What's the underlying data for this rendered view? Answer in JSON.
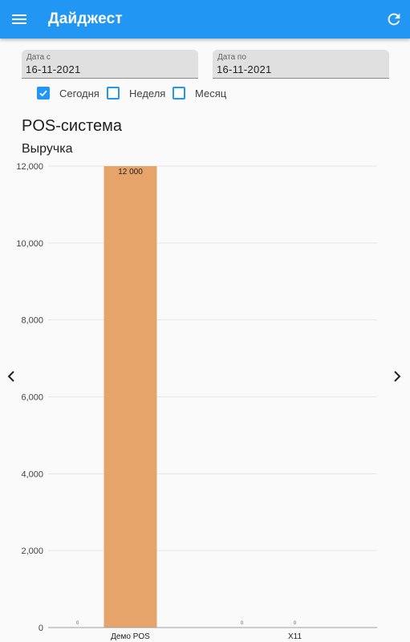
{
  "appbar": {
    "title": "Дайджест",
    "menu_icon": "menu-icon",
    "refresh_icon": "refresh-icon",
    "color": "#2196f3"
  },
  "filters": {
    "date_from": {
      "label": "Дата с",
      "value": "16-11-2021"
    },
    "date_to": {
      "label": "Дата по",
      "value": "16-11-2021"
    },
    "periods": [
      {
        "label": "Сегодня",
        "checked": true
      },
      {
        "label": "Неделя",
        "checked": false
      },
      {
        "label": "Месяц",
        "checked": false
      }
    ]
  },
  "section": {
    "system_title": "POS-система",
    "metric_title": "Выручка"
  },
  "nav": {
    "prev_icon": "chevron-left-icon",
    "next_icon": "chevron-right-icon"
  },
  "chart_data": {
    "type": "bar",
    "categories": [
      "Демо POS",
      "X11"
    ],
    "series": [
      {
        "values": [
          0,
          0
        ]
      },
      {
        "values": [
          12000,
          0
        ]
      },
      {
        "values": [
          0,
          0
        ]
      }
    ],
    "data_labels": [
      [
        "0",
        "0"
      ],
      [
        "12 000",
        "0"
      ],
      [
        "",
        ""
      ]
    ],
    "yticks": [
      "0",
      "2,000",
      "4,000",
      "6,000",
      "8,000",
      "10,000",
      "12,000"
    ],
    "ylim": [
      0,
      12000
    ],
    "bar_color": "#e6a46a",
    "grid": true
  }
}
